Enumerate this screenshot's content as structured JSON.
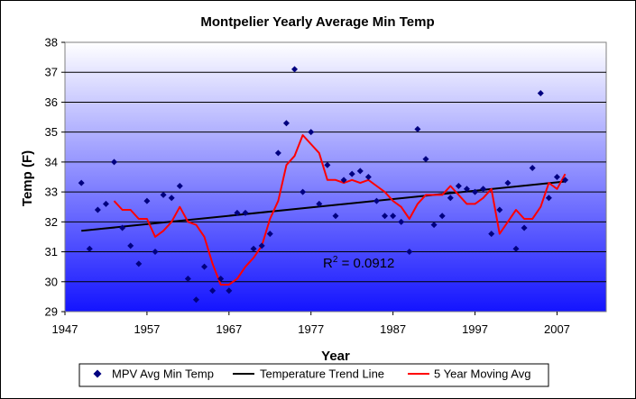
{
  "chart_data": {
    "type": "scatter",
    "title": "Montpelier Yearly Average Min Temp",
    "xlabel": "Year",
    "ylabel": "Temp (F)",
    "xlim": [
      1947,
      2013
    ],
    "ylim": [
      29,
      38
    ],
    "x_ticks": [
      1947,
      1957,
      1967,
      1977,
      1987,
      1997,
      2007
    ],
    "y_ticks": [
      29,
      30,
      31,
      32,
      33,
      34,
      35,
      36,
      37,
      38
    ],
    "grid": "horizontal",
    "legend_position": "bottom",
    "annotation": {
      "base": "R",
      "sup": "2",
      "rest": " = 0.0912"
    },
    "colors": {
      "points": "#000080",
      "trend": "#000000",
      "moving_avg": "#ff0000"
    },
    "series": [
      {
        "name": "MPV Avg Min Temp",
        "kind": "points",
        "x": [
          1949,
          1950,
          1951,
          1952,
          1953,
          1954,
          1955,
          1956,
          1957,
          1958,
          1959,
          1960,
          1961,
          1962,
          1963,
          1964,
          1965,
          1966,
          1967,
          1968,
          1969,
          1970,
          1971,
          1972,
          1973,
          1974,
          1975,
          1976,
          1977,
          1978,
          1979,
          1980,
          1981,
          1982,
          1983,
          1984,
          1985,
          1986,
          1987,
          1988,
          1989,
          1990,
          1991,
          1992,
          1993,
          1994,
          1995,
          1996,
          1997,
          1998,
          1999,
          2000,
          2001,
          2002,
          2003,
          2004,
          2005,
          2006,
          2007,
          2008
        ],
        "y": [
          33.3,
          31.1,
          32.4,
          32.6,
          34.0,
          31.8,
          31.2,
          30.6,
          32.7,
          31.0,
          32.9,
          32.8,
          33.2,
          30.1,
          29.4,
          30.5,
          29.7,
          30.1,
          29.7,
          32.3,
          32.3,
          31.1,
          31.2,
          31.6,
          34.3,
          35.3,
          37.1,
          33.0,
          35.0,
          32.6,
          33.9,
          32.2,
          33.4,
          33.6,
          33.7,
          33.5,
          32.7,
          32.2,
          32.2,
          32.0,
          31.0,
          35.1,
          34.1,
          31.9,
          32.2,
          32.8,
          33.2,
          33.1,
          33.0,
          33.1,
          31.6,
          32.4,
          33.3,
          31.1,
          31.8,
          33.8,
          36.3,
          32.8,
          33.5,
          33.4
        ]
      },
      {
        "name": "Temperature Trend Line",
        "kind": "line",
        "x": [
          1949,
          2008
        ],
        "y": [
          31.7,
          33.35
        ]
      },
      {
        "name": "5 Year Moving Avg",
        "kind": "line",
        "x": [
          1953,
          1954,
          1955,
          1956,
          1957,
          1958,
          1959,
          1960,
          1961,
          1962,
          1963,
          1964,
          1965,
          1966,
          1967,
          1968,
          1969,
          1970,
          1971,
          1972,
          1973,
          1974,
          1975,
          1976,
          1977,
          1978,
          1979,
          1980,
          1981,
          1982,
          1983,
          1984,
          1985,
          1986,
          1987,
          1988,
          1989,
          1990,
          1991,
          1992,
          1993,
          1994,
          1995,
          1996,
          1997,
          1998,
          1999,
          2000,
          2001,
          2002,
          2003,
          2004,
          2005,
          2006,
          2007,
          2008
        ],
        "y": [
          32.7,
          32.4,
          32.4,
          32.1,
          32.1,
          31.5,
          31.7,
          32.0,
          32.5,
          32.0,
          31.9,
          31.5,
          30.6,
          29.9,
          29.9,
          30.1,
          30.5,
          30.8,
          31.2,
          32.1,
          32.7,
          33.9,
          34.2,
          34.9,
          34.6,
          34.3,
          33.4,
          33.4,
          33.3,
          33.4,
          33.3,
          33.4,
          33.2,
          33.0,
          32.7,
          32.5,
          32.1,
          32.6,
          32.9,
          32.9,
          32.9,
          33.2,
          32.9,
          32.6,
          32.6,
          32.8,
          33.1,
          31.6,
          32.0,
          32.4,
          32.1,
          32.1,
          32.5,
          33.3,
          33.1,
          33.6
        ]
      }
    ]
  }
}
